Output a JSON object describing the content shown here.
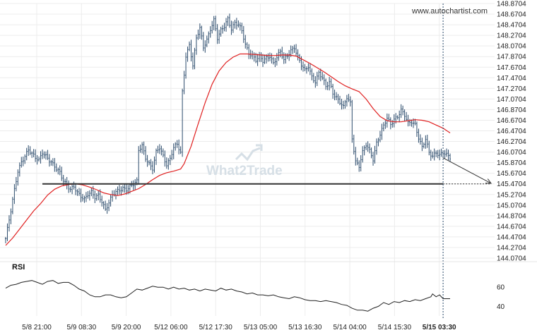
{
  "watermark_url": "www.autochartist.com",
  "watermark_logo": "What2Trade",
  "rsi_label": "RSI",
  "colors": {
    "candle": "#2a4a6b",
    "ma_line": "#e02020",
    "support_line": "#333333",
    "rsi_line": "#222222",
    "current_time_line": "#2a4a6b",
    "projection": "#333333"
  },
  "chart_data": {
    "type": "candlestick",
    "title": "",
    "price_axis": {
      "ticks": [
        "148.8704",
        "148.6704",
        "148.4704",
        "148.2704",
        "148.0704",
        "147.8704",
        "147.6704",
        "147.4704",
        "147.2704",
        "147.0704",
        "146.8704",
        "146.6704",
        "146.4704",
        "146.2704",
        "146.0704",
        "145.8704",
        "145.6704",
        "145.4704",
        "145.2704",
        "145.0704",
        "144.8704",
        "144.6704",
        "144.4704",
        "144.2704",
        "144.0704"
      ],
      "range": [
        144.0704,
        148.8704
      ]
    },
    "time_axis": {
      "ticks": [
        "5/8 21:00",
        "5/9 08:30",
        "5/9 20:00",
        "5/12 06:00",
        "5/12 17:30",
        "5/13 05:00",
        "5/13 16:30",
        "5/14 04:00",
        "5/14 15:30",
        "5/15 03:30"
      ]
    },
    "support_level": 145.47,
    "projection": {
      "from": 145.96,
      "to": 145.48
    },
    "moving_average": [
      [
        0,
        144.31
      ],
      [
        4,
        144.45
      ],
      [
        8,
        144.62
      ],
      [
        12,
        144.79
      ],
      [
        16,
        144.96
      ],
      [
        20,
        145.1
      ],
      [
        24,
        145.26
      ],
      [
        28,
        145.37
      ],
      [
        32,
        145.43
      ],
      [
        36,
        145.46
      ],
      [
        40,
        145.47
      ],
      [
        44,
        145.45
      ],
      [
        48,
        145.41
      ],
      [
        52,
        145.36
      ],
      [
        56,
        145.3
      ],
      [
        60,
        145.27
      ],
      [
        64,
        145.25
      ],
      [
        68,
        145.28
      ],
      [
        72,
        145.33
      ],
      [
        76,
        145.38
      ],
      [
        80,
        145.46
      ],
      [
        84,
        145.55
      ],
      [
        88,
        145.63
      ],
      [
        92,
        145.68
      ],
      [
        96,
        145.71
      ],
      [
        100,
        145.75
      ],
      [
        102,
        145.85
      ],
      [
        106,
        146.18
      ],
      [
        110,
        146.6
      ],
      [
        114,
        147.0
      ],
      [
        118,
        147.35
      ],
      [
        122,
        147.6
      ],
      [
        126,
        147.76
      ],
      [
        130,
        147.86
      ],
      [
        134,
        147.92
      ],
      [
        138,
        147.92
      ],
      [
        142,
        147.91
      ],
      [
        146,
        147.9
      ],
      [
        150,
        147.89
      ],
      [
        154,
        147.89
      ],
      [
        158,
        147.9
      ],
      [
        162,
        147.9
      ],
      [
        166,
        147.88
      ],
      [
        170,
        147.81
      ],
      [
        174,
        147.74
      ],
      [
        178,
        147.66
      ],
      [
        182,
        147.58
      ],
      [
        186,
        147.49
      ],
      [
        190,
        147.4
      ],
      [
        194,
        147.32
      ],
      [
        198,
        147.26
      ],
      [
        202,
        147.21
      ],
      [
        206,
        147.07
      ],
      [
        210,
        146.89
      ],
      [
        214,
        146.74
      ],
      [
        218,
        146.66
      ],
      [
        222,
        146.64
      ],
      [
        226,
        146.64
      ],
      [
        230,
        146.66
      ],
      [
        234,
        146.68
      ],
      [
        238,
        146.67
      ],
      [
        242,
        146.64
      ],
      [
        246,
        146.58
      ],
      [
        250,
        146.52
      ],
      [
        254,
        146.43
      ]
    ],
    "close_path": [
      [
        0,
        144.44
      ],
      [
        3,
        144.95
      ],
      [
        5,
        145.35
      ],
      [
        7,
        145.72
      ],
      [
        9,
        145.9
      ],
      [
        11,
        146.0
      ],
      [
        13,
        146.1
      ],
      [
        15,
        146.02
      ],
      [
        17,
        145.96
      ],
      [
        19,
        145.93
      ],
      [
        21,
        146.08
      ],
      [
        23,
        146.0
      ],
      [
        25,
        145.9
      ],
      [
        27,
        145.82
      ],
      [
        29,
        145.75
      ],
      [
        31,
        145.7
      ],
      [
        33,
        145.55
      ],
      [
        35,
        145.45
      ],
      [
        37,
        145.35
      ],
      [
        39,
        145.4
      ],
      [
        41,
        145.3
      ],
      [
        43,
        145.25
      ],
      [
        45,
        145.2
      ],
      [
        47,
        145.28
      ],
      [
        49,
        145.3
      ],
      [
        51,
        145.2
      ],
      [
        53,
        145.25
      ],
      [
        55,
        145.15
      ],
      [
        57,
        145.0
      ],
      [
        59,
        145.12
      ],
      [
        61,
        145.25
      ],
      [
        63,
        145.3
      ],
      [
        65,
        145.35
      ],
      [
        67,
        145.4
      ],
      [
        69,
        145.38
      ],
      [
        71,
        145.42
      ],
      [
        73,
        145.45
      ],
      [
        75,
        145.5
      ],
      [
        76,
        146.1
      ],
      [
        78,
        146.2
      ],
      [
        80,
        145.98
      ],
      [
        82,
        145.85
      ],
      [
        84,
        145.75
      ],
      [
        86,
        146.05
      ],
      [
        88,
        146.15
      ],
      [
        90,
        146.0
      ],
      [
        92,
        145.85
      ],
      [
        94,
        145.95
      ],
      [
        96,
        146.15
      ],
      [
        98,
        146.2
      ],
      [
        100,
        146.05
      ],
      [
        101,
        147.2
      ],
      [
        103,
        147.9
      ],
      [
        105,
        148.1
      ],
      [
        107,
        147.7
      ],
      [
        109,
        148.2
      ],
      [
        111,
        148.4
      ],
      [
        113,
        148.05
      ],
      [
        115,
        148.2
      ],
      [
        117,
        148.4
      ],
      [
        119,
        148.55
      ],
      [
        121,
        148.2
      ],
      [
        123,
        148.35
      ],
      [
        125,
        148.45
      ],
      [
        127,
        148.6
      ],
      [
        129,
        148.4
      ],
      [
        131,
        148.5
      ],
      [
        133,
        148.45
      ],
      [
        135,
        148.35
      ],
      [
        137,
        148.1
      ],
      [
        139,
        147.95
      ],
      [
        141,
        147.9
      ],
      [
        143,
        147.8
      ],
      [
        145,
        147.85
      ],
      [
        147,
        147.78
      ],
      [
        149,
        147.85
      ],
      [
        151,
        147.9
      ],
      [
        153,
        147.75
      ],
      [
        155,
        147.85
      ],
      [
        157,
        147.95
      ],
      [
        159,
        147.8
      ],
      [
        161,
        147.9
      ],
      [
        163,
        148.0
      ],
      [
        165,
        148.05
      ],
      [
        167,
        147.85
      ],
      [
        169,
        147.7
      ],
      [
        171,
        147.6
      ],
      [
        173,
        147.7
      ],
      [
        175,
        147.5
      ],
      [
        177,
        147.4
      ],
      [
        179,
        147.55
      ],
      [
        181,
        147.45
      ],
      [
        183,
        147.3
      ],
      [
        185,
        147.4
      ],
      [
        187,
        147.2
      ],
      [
        189,
        147.1
      ],
      [
        191,
        147.0
      ],
      [
        193,
        146.9
      ],
      [
        195,
        147.1
      ],
      [
        197,
        147.0
      ],
      [
        198,
        146.35
      ],
      [
        200,
        145.9
      ],
      [
        202,
        145.8
      ],
      [
        204,
        146.05
      ],
      [
        206,
        146.2
      ],
      [
        208,
        146.1
      ],
      [
        210,
        145.95
      ],
      [
        212,
        146.25
      ],
      [
        214,
        146.4
      ],
      [
        216,
        146.55
      ],
      [
        218,
        146.7
      ],
      [
        220,
        146.6
      ],
      [
        222,
        146.7
      ],
      [
        224,
        146.75
      ],
      [
        226,
        146.85
      ],
      [
        228,
        146.75
      ],
      [
        230,
        146.6
      ],
      [
        232,
        146.65
      ],
      [
        234,
        146.6
      ],
      [
        236,
        146.35
      ],
      [
        238,
        146.15
      ],
      [
        240,
        146.3
      ],
      [
        242,
        146.05
      ],
      [
        244,
        146.0
      ],
      [
        246,
        146.08
      ],
      [
        248,
        146.02
      ],
      [
        250,
        146.05
      ],
      [
        252,
        146.0
      ],
      [
        254,
        145.96
      ]
    ],
    "rsi": {
      "ticks": [
        "60",
        "40"
      ],
      "range": [
        30,
        80
      ],
      "values": [
        [
          0,
          59
        ],
        [
          3,
          62
        ],
        [
          6,
          63
        ],
        [
          9,
          65
        ],
        [
          12,
          66
        ],
        [
          15,
          67
        ],
        [
          18,
          65
        ],
        [
          21,
          63
        ],
        [
          24,
          66
        ],
        [
          27,
          67
        ],
        [
          30,
          64
        ],
        [
          33,
          65
        ],
        [
          36,
          65
        ],
        [
          39,
          62
        ],
        [
          42,
          58
        ],
        [
          45,
          56
        ],
        [
          48,
          52
        ],
        [
          51,
          50
        ],
        [
          54,
          50
        ],
        [
          57,
          52
        ],
        [
          60,
          52
        ],
        [
          63,
          50
        ],
        [
          66,
          49
        ],
        [
          69,
          50
        ],
        [
          72,
          54
        ],
        [
          75,
          58
        ],
        [
          78,
          57
        ],
        [
          81,
          59
        ],
        [
          84,
          61
        ],
        [
          87,
          60
        ],
        [
          90,
          60
        ],
        [
          93,
          58
        ],
        [
          96,
          60
        ],
        [
          99,
          58
        ],
        [
          102,
          59
        ],
        [
          105,
          57
        ],
        [
          108,
          58
        ],
        [
          111,
          56
        ],
        [
          114,
          58
        ],
        [
          117,
          57
        ],
        [
          120,
          56
        ],
        [
          123,
          59
        ],
        [
          126,
          57
        ],
        [
          129,
          58
        ],
        [
          132,
          56
        ],
        [
          135,
          55
        ],
        [
          138,
          53
        ],
        [
          141,
          54
        ],
        [
          144,
          52
        ],
        [
          147,
          52
        ],
        [
          150,
          51
        ],
        [
          153,
          52
        ],
        [
          156,
          50
        ],
        [
          159,
          49
        ],
        [
          162,
          48
        ],
        [
          165,
          50
        ],
        [
          168,
          49
        ],
        [
          171,
          47
        ],
        [
          174,
          46
        ],
        [
          177,
          46
        ],
        [
          180,
          45
        ],
        [
          183,
          46
        ],
        [
          186,
          45
        ],
        [
          189,
          44
        ],
        [
          192,
          42
        ],
        [
          195,
          41
        ],
        [
          198,
          38
        ],
        [
          201,
          36
        ],
        [
          204,
          36
        ],
        [
          207,
          35
        ],
        [
          210,
          38
        ],
        [
          213,
          40
        ],
        [
          216,
          44
        ],
        [
          219,
          42
        ],
        [
          222,
          45
        ],
        [
          225,
          44
        ],
        [
          228,
          46
        ],
        [
          231,
          45
        ],
        [
          234,
          47
        ],
        [
          237,
          46
        ],
        [
          240,
          48
        ],
        [
          243,
          50
        ],
        [
          244,
          53
        ],
        [
          246,
          50
        ],
        [
          248,
          52
        ],
        [
          250,
          48
        ],
        [
          254,
          48
        ]
      ]
    }
  }
}
